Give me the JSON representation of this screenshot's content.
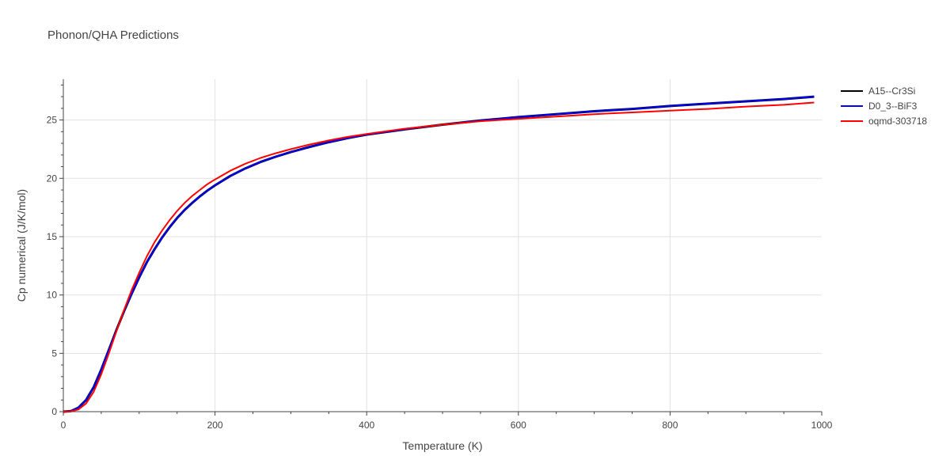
{
  "chart_data": {
    "type": "line",
    "title": "Phonon/QHA Predictions",
    "xlabel": "Temperature (K)",
    "ylabel": "Cp numerical (J/K/mol)",
    "xlim": [
      0,
      1000
    ],
    "ylim": [
      0,
      28.5
    ],
    "x_ticks": [
      0,
      200,
      400,
      600,
      800,
      1000
    ],
    "y_ticks": [
      0,
      5,
      10,
      15,
      20,
      25
    ],
    "grid": true,
    "legend_position": "top-right",
    "series": [
      {
        "name": "A15--Cr3Si",
        "color": "#000000",
        "x": [
          0,
          10,
          20,
          30,
          40,
          50,
          60,
          70,
          80,
          90,
          100,
          110,
          120,
          130,
          140,
          150,
          160,
          170,
          180,
          190,
          200,
          220,
          240,
          260,
          280,
          300,
          325,
          350,
          375,
          400,
          450,
          500,
          550,
          600,
          650,
          700,
          750,
          800,
          850,
          900,
          950,
          990
        ],
        "y": [
          0,
          0.05,
          0.35,
          1.0,
          2.1,
          3.6,
          5.3,
          7.0,
          8.6,
          10.1,
          11.5,
          12.8,
          13.9,
          14.9,
          15.8,
          16.6,
          17.3,
          17.9,
          18.45,
          18.95,
          19.4,
          20.2,
          20.85,
          21.4,
          21.85,
          22.25,
          22.7,
          23.1,
          23.45,
          23.75,
          24.2,
          24.6,
          24.95,
          25.25,
          25.5,
          25.75,
          25.95,
          26.2,
          26.4,
          26.6,
          26.8,
          27.0
        ]
      },
      {
        "name": "D0_3--BiF3",
        "color": "#0000ff",
        "x": [
          0,
          10,
          20,
          30,
          40,
          50,
          60,
          70,
          80,
          90,
          100,
          110,
          120,
          130,
          140,
          150,
          160,
          170,
          180,
          190,
          200,
          220,
          240,
          260,
          280,
          300,
          325,
          350,
          375,
          400,
          450,
          500,
          550,
          600,
          650,
          700,
          750,
          800,
          850,
          900,
          950,
          990
        ],
        "y": [
          0,
          0.05,
          0.35,
          1.0,
          2.1,
          3.6,
          5.3,
          7.0,
          8.6,
          10.1,
          11.5,
          12.8,
          13.9,
          14.9,
          15.8,
          16.6,
          17.3,
          17.9,
          18.45,
          18.95,
          19.4,
          20.2,
          20.85,
          21.4,
          21.85,
          22.25,
          22.7,
          23.1,
          23.45,
          23.75,
          24.2,
          24.6,
          24.95,
          25.25,
          25.5,
          25.75,
          25.95,
          26.2,
          26.4,
          26.6,
          26.8,
          27.0
        ]
      },
      {
        "name": "oqmd-303718",
        "color": "#ff0000",
        "x": [
          0,
          10,
          20,
          30,
          40,
          50,
          60,
          70,
          80,
          90,
          100,
          110,
          120,
          130,
          140,
          150,
          160,
          170,
          180,
          190,
          200,
          220,
          240,
          260,
          280,
          300,
          325,
          350,
          375,
          400,
          450,
          500,
          550,
          600,
          650,
          700,
          750,
          800,
          850,
          900,
          950,
          990
        ],
        "y": [
          0,
          0.02,
          0.2,
          0.7,
          1.7,
          3.2,
          5.0,
          6.9,
          8.7,
          10.4,
          11.9,
          13.3,
          14.5,
          15.5,
          16.4,
          17.2,
          17.9,
          18.5,
          19.0,
          19.5,
          19.9,
          20.65,
          21.25,
          21.75,
          22.15,
          22.5,
          22.9,
          23.25,
          23.55,
          23.8,
          24.25,
          24.6,
          24.9,
          25.1,
          25.3,
          25.5,
          25.65,
          25.8,
          25.95,
          26.15,
          26.3,
          26.5
        ]
      }
    ]
  }
}
